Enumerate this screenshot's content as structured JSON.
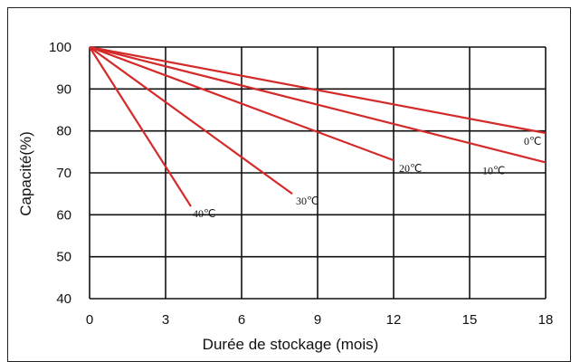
{
  "chart_data": {
    "type": "line",
    "xlabel": "Durée de stockage (mois)",
    "ylabel": "Capacité(%)",
    "xlim": [
      0,
      18
    ],
    "ylim": [
      40,
      100
    ],
    "x_ticks": [
      0,
      3,
      6,
      9,
      12,
      15,
      18
    ],
    "y_ticks": [
      40,
      50,
      60,
      70,
      80,
      90,
      100
    ],
    "grid": true,
    "legend": "none",
    "series_color": "#d42a2a",
    "series": [
      {
        "name": "0℃",
        "x": [
          0,
          18
        ],
        "y": [
          100,
          79.5
        ]
      },
      {
        "name": "10℃",
        "x": [
          0,
          18
        ],
        "y": [
          100,
          72.5
        ]
      },
      {
        "name": "20℃",
        "x": [
          0,
          12
        ],
        "y": [
          100,
          73
        ]
      },
      {
        "name": "30℃",
        "x": [
          0,
          8
        ],
        "y": [
          100,
          65
        ]
      },
      {
        "name": "40℃",
        "x": [
          0,
          4
        ],
        "y": [
          100,
          62
        ]
      }
    ]
  }
}
